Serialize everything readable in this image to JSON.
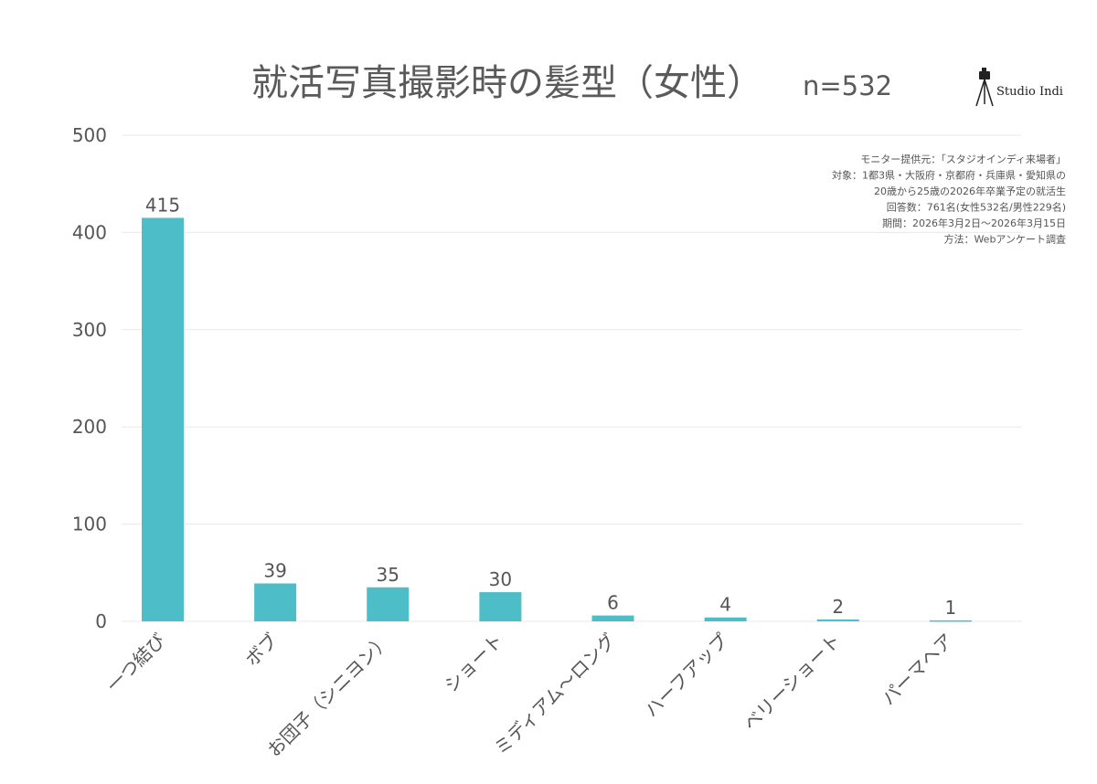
{
  "chart_data": {
    "type": "bar",
    "title": "就活写真撮影時の髪型（女性）",
    "n_label": "n=532",
    "categories": [
      "一つ結び",
      "ボブ",
      "お団子（シニヨン）",
      "ショート",
      "ミディアム〜ロング",
      "ハーフアップ",
      "ベリーショート",
      "パーマヘア"
    ],
    "values": [
      415,
      39,
      35,
      30,
      6,
      4,
      2,
      1
    ],
    "ylim": [
      0,
      500
    ],
    "yticks": [
      0,
      100,
      200,
      300,
      400,
      500
    ],
    "xlabel": "",
    "ylabel": "",
    "grid": true,
    "bar_color": "#4dbdc8",
    "grid_color": "#e8e8e8",
    "notes": [
      "モニター提供元：「スタジオインディ来場者」",
      "対象：1都3県・大阪府・京都府・兵庫県・愛知県の",
      "20歳から25歳の2026年卒業予定の就活生",
      "回答数：761名(女性532名/男性229名)",
      "期間：2026年3月2日〜2026年3月15日",
      "方法：Webアンケート調査"
    ]
  },
  "logo": {
    "text": "Studio Indi",
    "icon": "camera-tripod-icon"
  }
}
